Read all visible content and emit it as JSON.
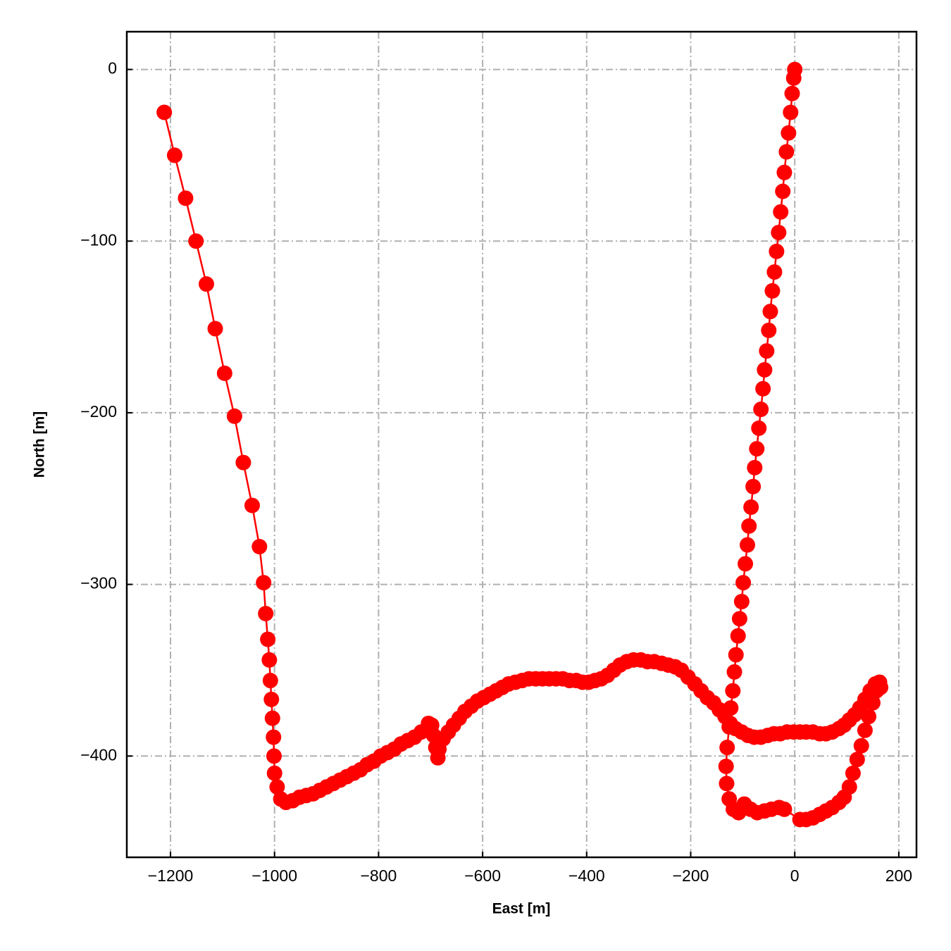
{
  "chart_data": {
    "type": "line",
    "xlabel": "East [m]",
    "ylabel": "North [m]",
    "color": "#ff0000",
    "grid": true,
    "xlim": [
      -1284,
      234
    ],
    "ylim": [
      -459,
      22
    ],
    "xticks": [
      {
        "value": -1200,
        "label": "−1200"
      },
      {
        "value": -1000,
        "label": "−1000"
      },
      {
        "value": -800,
        "label": "−800"
      },
      {
        "value": -600,
        "label": "−600"
      },
      {
        "value": -400,
        "label": "−400"
      },
      {
        "value": -200,
        "label": "−200"
      },
      0,
      200
    ],
    "yticks": [
      0,
      {
        "value": -100,
        "label": "−100"
      },
      {
        "value": -200,
        "label": "−200"
      },
      {
        "value": -300,
        "label": "−300"
      },
      {
        "value": -400,
        "label": "−400"
      }
    ],
    "x": [
      0,
      -2,
      -5,
      -8,
      -12,
      -16,
      -20,
      -23,
      -27,
      -31,
      -35,
      -39,
      -43,
      -47,
      -50,
      -54,
      -58,
      -61,
      -65,
      -69,
      -73,
      -77,
      -80,
      -84,
      -88,
      -91,
      -95,
      -99,
      -102,
      -106,
      -109,
      -113,
      -116,
      -119,
      -123,
      -126,
      -130,
      -132,
      -131,
      -126,
      -118,
      -108,
      -97,
      -85,
      -72,
      -58,
      -45,
      -30,
      -20,
      10,
      22,
      35,
      48,
      60,
      72,
      85,
      95,
      105,
      112,
      120,
      128,
      135,
      142,
      150,
      157,
      163,
      165,
      155,
      145,
      135,
      125,
      115,
      105,
      95,
      85,
      72,
      60,
      48,
      35,
      22,
      10,
      -2,
      -15,
      -28,
      -40,
      -52,
      -65,
      -78,
      -90,
      -102,
      -114,
      -124,
      -134,
      -145,
      -156,
      -168,
      -180,
      -192,
      -205,
      -218,
      -230,
      -243,
      -256,
      -270,
      -283,
      -296,
      -310,
      -323,
      -336,
      -348,
      -360,
      -372,
      -384,
      -396,
      -408,
      -420,
      -433,
      -446,
      -459,
      -472,
      -485,
      -498,
      -511,
      -524,
      -537,
      -550,
      -562,
      -574,
      -586,
      -598,
      -610,
      -622,
      -634,
      -645,
      -656,
      -666,
      -676,
      -684,
      -686,
      -690,
      -694,
      -698,
      -704,
      -718,
      -731,
      -744,
      -757,
      -770,
      -783,
      -796,
      -809,
      -822,
      -835,
      -848,
      -861,
      -874,
      -887,
      -900,
      -913,
      -926,
      -939,
      -952,
      -965,
      -978,
      -988,
      -995,
      -1000,
      -1001,
      -1002,
      -1004,
      -1006,
      -1008,
      -1010,
      -1013,
      -1017,
      -1021,
      -1029,
      -1043,
      -1060,
      -1077,
      -1096,
      -1114,
      -1131,
      -1151,
      -1171,
      -1192,
      -1212
    ],
    "values": [
      0,
      -5,
      -14,
      -25,
      -37,
      -48,
      -60,
      -71,
      -83,
      -95,
      -106,
      -118,
      -129,
      -141,
      -152,
      -164,
      -175,
      -186,
      -198,
      -209,
      -221,
      -232,
      -243,
      -255,
      -266,
      -277,
      -288,
      -299,
      -310,
      -320,
      -330,
      -341,
      -351,
      -362,
      -372,
      -383,
      -395,
      -406,
      -416,
      -425,
      -431,
      -433,
      -428,
      -431,
      -433,
      -432,
      -431,
      -430,
      -431,
      -437,
      -437,
      -436,
      -434,
      -432,
      -430,
      -427,
      -424,
      -418,
      -410,
      -402,
      -394,
      -385,
      -377,
      -369,
      -362,
      -357,
      -360,
      -358,
      -362,
      -367,
      -372,
      -376,
      -379,
      -382,
      -384,
      -386,
      -387,
      -387,
      -386,
      -386,
      -386,
      -386,
      -386,
      -387,
      -387,
      -388,
      -389,
      -389,
      -388,
      -386,
      -384,
      -381,
      -377,
      -373,
      -369,
      -366,
      -362,
      -358,
      -354,
      -350,
      -348,
      -347,
      -346,
      -345,
      -345,
      -344,
      -344,
      -345,
      -347,
      -350,
      -353,
      -355,
      -356,
      -357,
      -357,
      -356,
      -356,
      -355,
      -355,
      -355,
      -355,
      -355,
      -355,
      -356,
      -357,
      -358,
      -360,
      -362,
      -364,
      -366,
      -368,
      -371,
      -374,
      -378,
      -382,
      -386,
      -390,
      -396,
      -401,
      -395,
      -388,
      -382,
      -381,
      -386,
      -389,
      -391,
      -393,
      -396,
      -398,
      -400,
      -403,
      -405,
      -408,
      -410,
      -412,
      -414,
      -416,
      -418,
      -420,
      -422,
      -423,
      -424,
      -426,
      -427,
      -425,
      -418,
      -410,
      -400,
      -389,
      -378,
      -367,
      -356,
      -344,
      -332,
      -317,
      -299,
      -278,
      -254,
      -229,
      -202,
      -177,
      -151,
      -125,
      -100,
      -75,
      -50,
      -25
    ]
  }
}
